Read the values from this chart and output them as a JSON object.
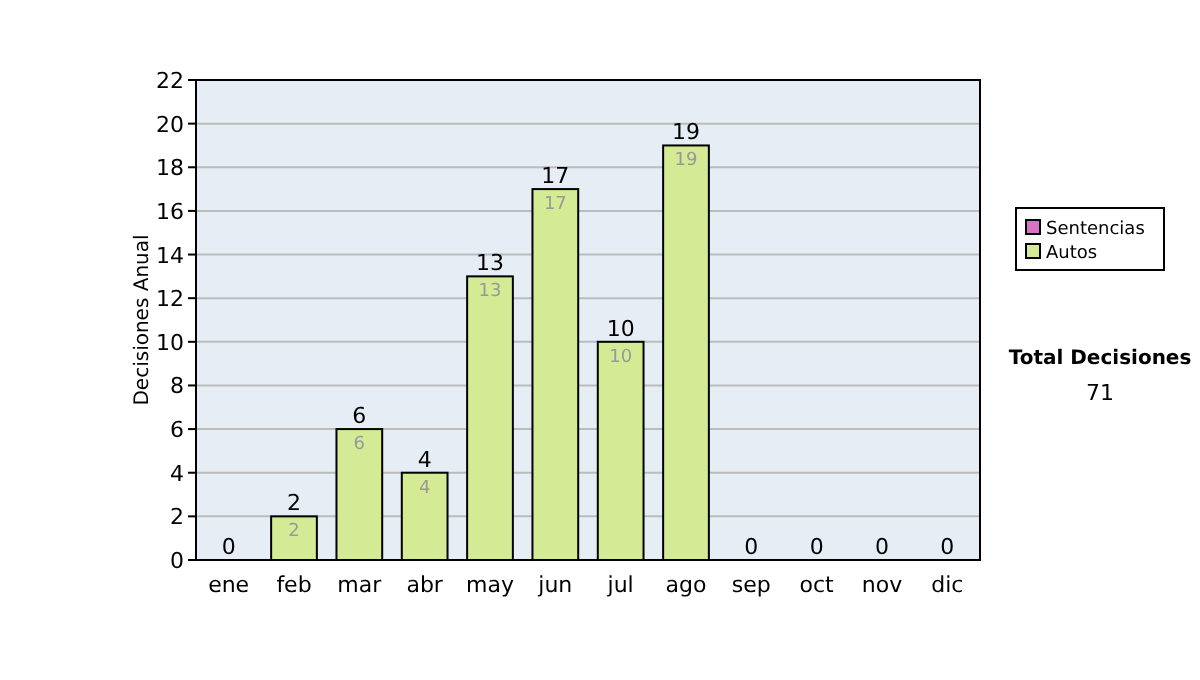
{
  "chart_data": {
    "type": "bar",
    "stacked": true,
    "ylabel": "Decisiones Anual",
    "categories": [
      "ene",
      "feb",
      "mar",
      "abr",
      "may",
      "jun",
      "jul",
      "ago",
      "sep",
      "oct",
      "nov",
      "dic"
    ],
    "series": [
      {
        "name": "Sentencias",
        "color": "#d874c8",
        "values": [
          0,
          0,
          0,
          0,
          0,
          0,
          0,
          0,
          0,
          0,
          0,
          0
        ]
      },
      {
        "name": "Autos",
        "color": "#d4ea94",
        "values": [
          0,
          2,
          6,
          4,
          13,
          17,
          10,
          19,
          0,
          0,
          0,
          0
        ],
        "value_labels": [
          null,
          "2",
          "6",
          "4",
          "13",
          "17",
          "10",
          "19",
          null,
          null,
          null,
          null
        ]
      }
    ],
    "totals": [
      "0",
      "2",
      "6",
      "4",
      "13",
      "17",
      "10",
      "19",
      "0",
      "0",
      "0",
      "0"
    ],
    "ylim": [
      0,
      22
    ],
    "yticks": [
      0,
      2,
      4,
      6,
      8,
      10,
      12,
      14,
      16,
      18,
      20,
      22
    ],
    "grid": "y",
    "legend": "right",
    "annotations": [
      "Total Decisiones",
      "71"
    ]
  }
}
